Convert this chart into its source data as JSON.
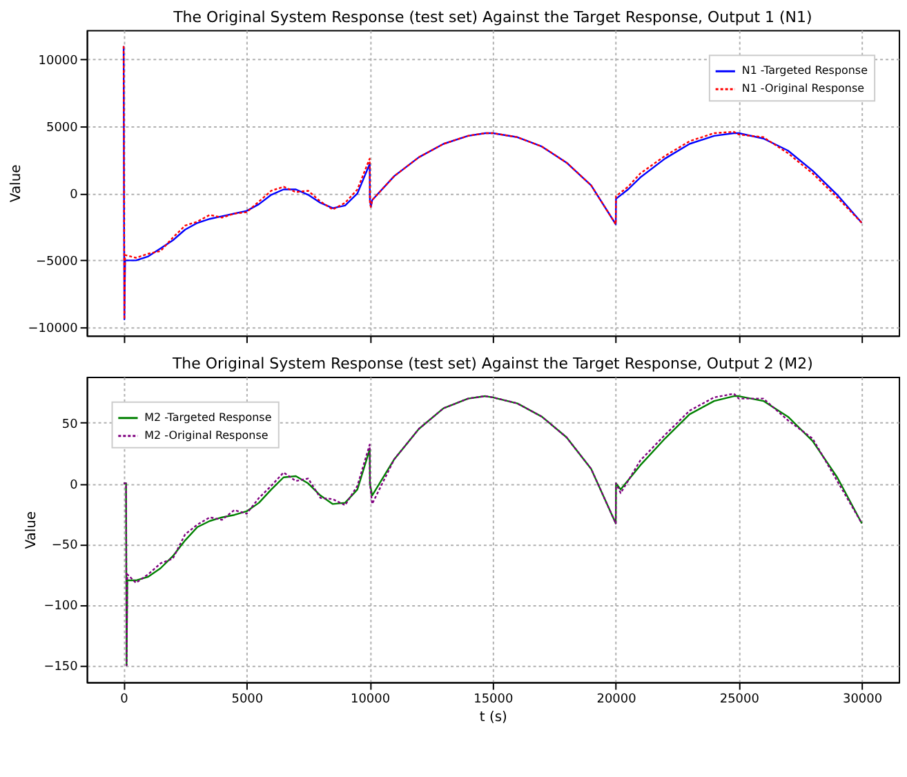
{
  "chart_data": [
    {
      "type": "line",
      "title": "The Original System Response (test set) Against the Target Response, Output 1 (N1)",
      "ylabel": "Value",
      "xlim": [
        -1500,
        31500
      ],
      "xticks": [
        0,
        5000,
        10000,
        15000,
        20000,
        25000,
        30000
      ],
      "ylim": [
        -10600,
        12200
      ],
      "yticks": [
        -10000,
        -5000,
        0,
        5000,
        10000
      ],
      "grid": true,
      "legend": "top right",
      "tick_labels": "y",
      "x": [
        0,
        30,
        60,
        500,
        1000,
        1500,
        2000,
        2500,
        3000,
        3500,
        4000,
        4500,
        5000,
        5500,
        6000,
        6500,
        7000,
        7500,
        8000,
        8500,
        9000,
        9500,
        10000,
        10010,
        10050,
        10100,
        11000,
        12000,
        13000,
        14000,
        14700,
        15000,
        16000,
        17000,
        18000,
        19000,
        20000,
        20010,
        20500,
        21000,
        22000,
        23000,
        24000,
        24800,
        25000,
        26000,
        27000,
        28000,
        29000,
        30000
      ],
      "series": [
        {
          "name": "N1 -Targeted Response",
          "color": "#0000ff",
          "line_style": "solid",
          "values": [
            11000,
            -9400,
            -5000,
            -5000,
            -4700,
            -4100,
            -3500,
            -2700,
            -2200,
            -1900,
            -1700,
            -1500,
            -1300,
            -800,
            -100,
            300,
            300,
            -100,
            -700,
            -1100,
            -900,
            0,
            2200,
            -500,
            -1000,
            -500,
            1300,
            2700,
            3700,
            4300,
            4500,
            4500,
            4200,
            3500,
            2300,
            600,
            -2300,
            -400,
            300,
            1200,
            2600,
            3700,
            4300,
            4500,
            4500,
            4100,
            3200,
            1700,
            -100,
            -2200
          ]
        },
        {
          "name": "N1 -Original Response",
          "color": "#ff0000",
          "line_style": "dotted",
          "values": [
            11000,
            -9400,
            -4600,
            -4800,
            -4500,
            -4300,
            -3300,
            -2400,
            -2100,
            -1600,
            -1800,
            -1500,
            -1400,
            -600,
            200,
            500,
            100,
            200,
            -600,
            -1200,
            -700,
            300,
            2600,
            -800,
            -1000,
            -500,
            1300,
            2700,
            3700,
            4300,
            4500,
            4500,
            4200,
            3500,
            2300,
            600,
            -2300,
            -200,
            500,
            1500,
            2800,
            3900,
            4500,
            4600,
            4400,
            4200,
            3000,
            1500,
            -300,
            -2200
          ]
        }
      ]
    },
    {
      "type": "line",
      "title": "The Original System Response (test set) Against the Target Response, Output 2 (M2)",
      "xlabel": "t (s)",
      "ylabel": "Value",
      "xlim": [
        -1500,
        31500
      ],
      "xticks": [
        0,
        5000,
        10000,
        15000,
        20000,
        25000,
        30000
      ],
      "ylim": [
        -164,
        88
      ],
      "yticks": [
        -150,
        -100,
        -50,
        0,
        50
      ],
      "grid": true,
      "legend": "top left",
      "x": [
        0,
        100,
        120,
        150,
        500,
        1000,
        1500,
        2000,
        2500,
        3000,
        3500,
        4000,
        4500,
        5000,
        5500,
        6000,
        6500,
        7000,
        7500,
        8000,
        8500,
        9000,
        9500,
        10000,
        10010,
        10100,
        11000,
        12000,
        13000,
        14000,
        14700,
        15000,
        16000,
        17000,
        18000,
        19000,
        20000,
        20010,
        20200,
        21000,
        22000,
        23000,
        24000,
        24800,
        25000,
        26000,
        27000,
        28000,
        29000,
        30000
      ],
      "series": [
        {
          "name": "M2 -Targeted Response",
          "color": "#008000",
          "line_style": "solid",
          "values": [
            0,
            0,
            -150,
            -80,
            -80,
            -77,
            -70,
            -60,
            -47,
            -36,
            -31,
            -28,
            -26,
            -23,
            -16,
            -5,
            5,
            6,
            0,
            -10,
            -17,
            -16,
            -5,
            28,
            0,
            -10,
            20,
            45,
            62,
            70,
            72,
            71,
            66,
            55,
            38,
            12,
            -33,
            0,
            -5,
            15,
            37,
            57,
            68,
            72,
            72,
            68,
            55,
            35,
            5,
            -33
          ]
        },
        {
          "name": "M2 -Original Response",
          "color": "#800080",
          "line_style": "dotted",
          "values": [
            0,
            0,
            -150,
            -75,
            -82,
            -75,
            -66,
            -62,
            -42,
            -34,
            -28,
            -30,
            -22,
            -25,
            -12,
            -2,
            9,
            2,
            4,
            -12,
            -13,
            -18,
            -2,
            32,
            0,
            -17,
            20,
            45,
            62,
            70,
            72,
            71,
            66,
            55,
            38,
            12,
            -33,
            0,
            -8,
            19,
            40,
            60,
            71,
            74,
            70,
            70,
            52,
            37,
            2,
            -33
          ]
        }
      ]
    }
  ]
}
